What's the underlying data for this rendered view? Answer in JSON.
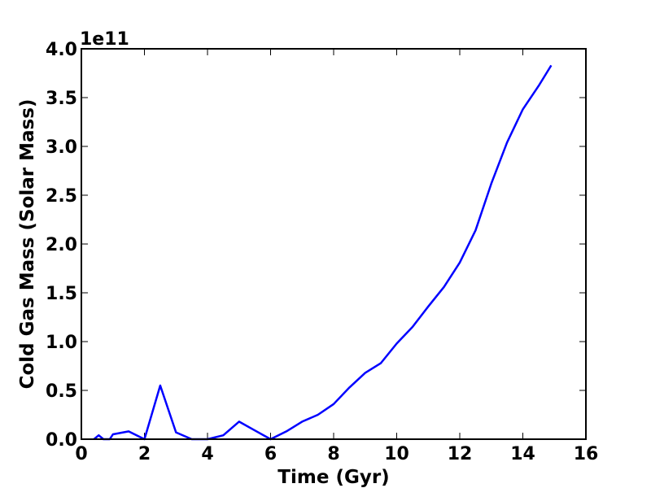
{
  "chart_data": {
    "type": "line",
    "title": "",
    "xlabel": "Time (Gyr)",
    "ylabel": "Cold Gas Mass (Solar Mass)",
    "y_offset_label": "1e11",
    "xlim": [
      0,
      16
    ],
    "ylim": [
      0,
      4.0
    ],
    "xticks": [
      "0",
      "2",
      "4",
      "6",
      "8",
      "10",
      "12",
      "14",
      "16"
    ],
    "yticks": [
      "0.0",
      "0.5",
      "1.0",
      "1.5",
      "2.0",
      "2.5",
      "3.0",
      "3.5",
      "4.0"
    ],
    "grid": false,
    "line_color": "#0000ff",
    "series": [
      {
        "x": [
          0.4,
          0.55,
          0.7,
          0.8,
          0.9,
          1.0,
          1.5,
          2.0,
          2.5,
          3.0,
          3.5,
          4.0,
          4.5,
          5.0,
          5.5,
          6.0,
          6.5,
          7.0,
          7.5,
          8.0,
          8.5,
          9.0,
          9.5,
          10.0,
          10.5,
          11.0,
          11.5,
          12.0,
          12.5,
          13.0,
          13.5,
          14.0,
          14.5,
          14.9
        ],
        "y": [
          0.0,
          0.04,
          0.0,
          0.0,
          0.0,
          0.05,
          0.08,
          0.0,
          0.55,
          0.07,
          0.0,
          0.0,
          0.04,
          0.18,
          0.09,
          0.0,
          0.08,
          0.18,
          0.25,
          0.36,
          0.53,
          0.68,
          0.78,
          0.98,
          1.15,
          1.36,
          1.56,
          1.81,
          2.14,
          2.62,
          3.04,
          3.38,
          3.62,
          3.83
        ]
      }
    ]
  }
}
